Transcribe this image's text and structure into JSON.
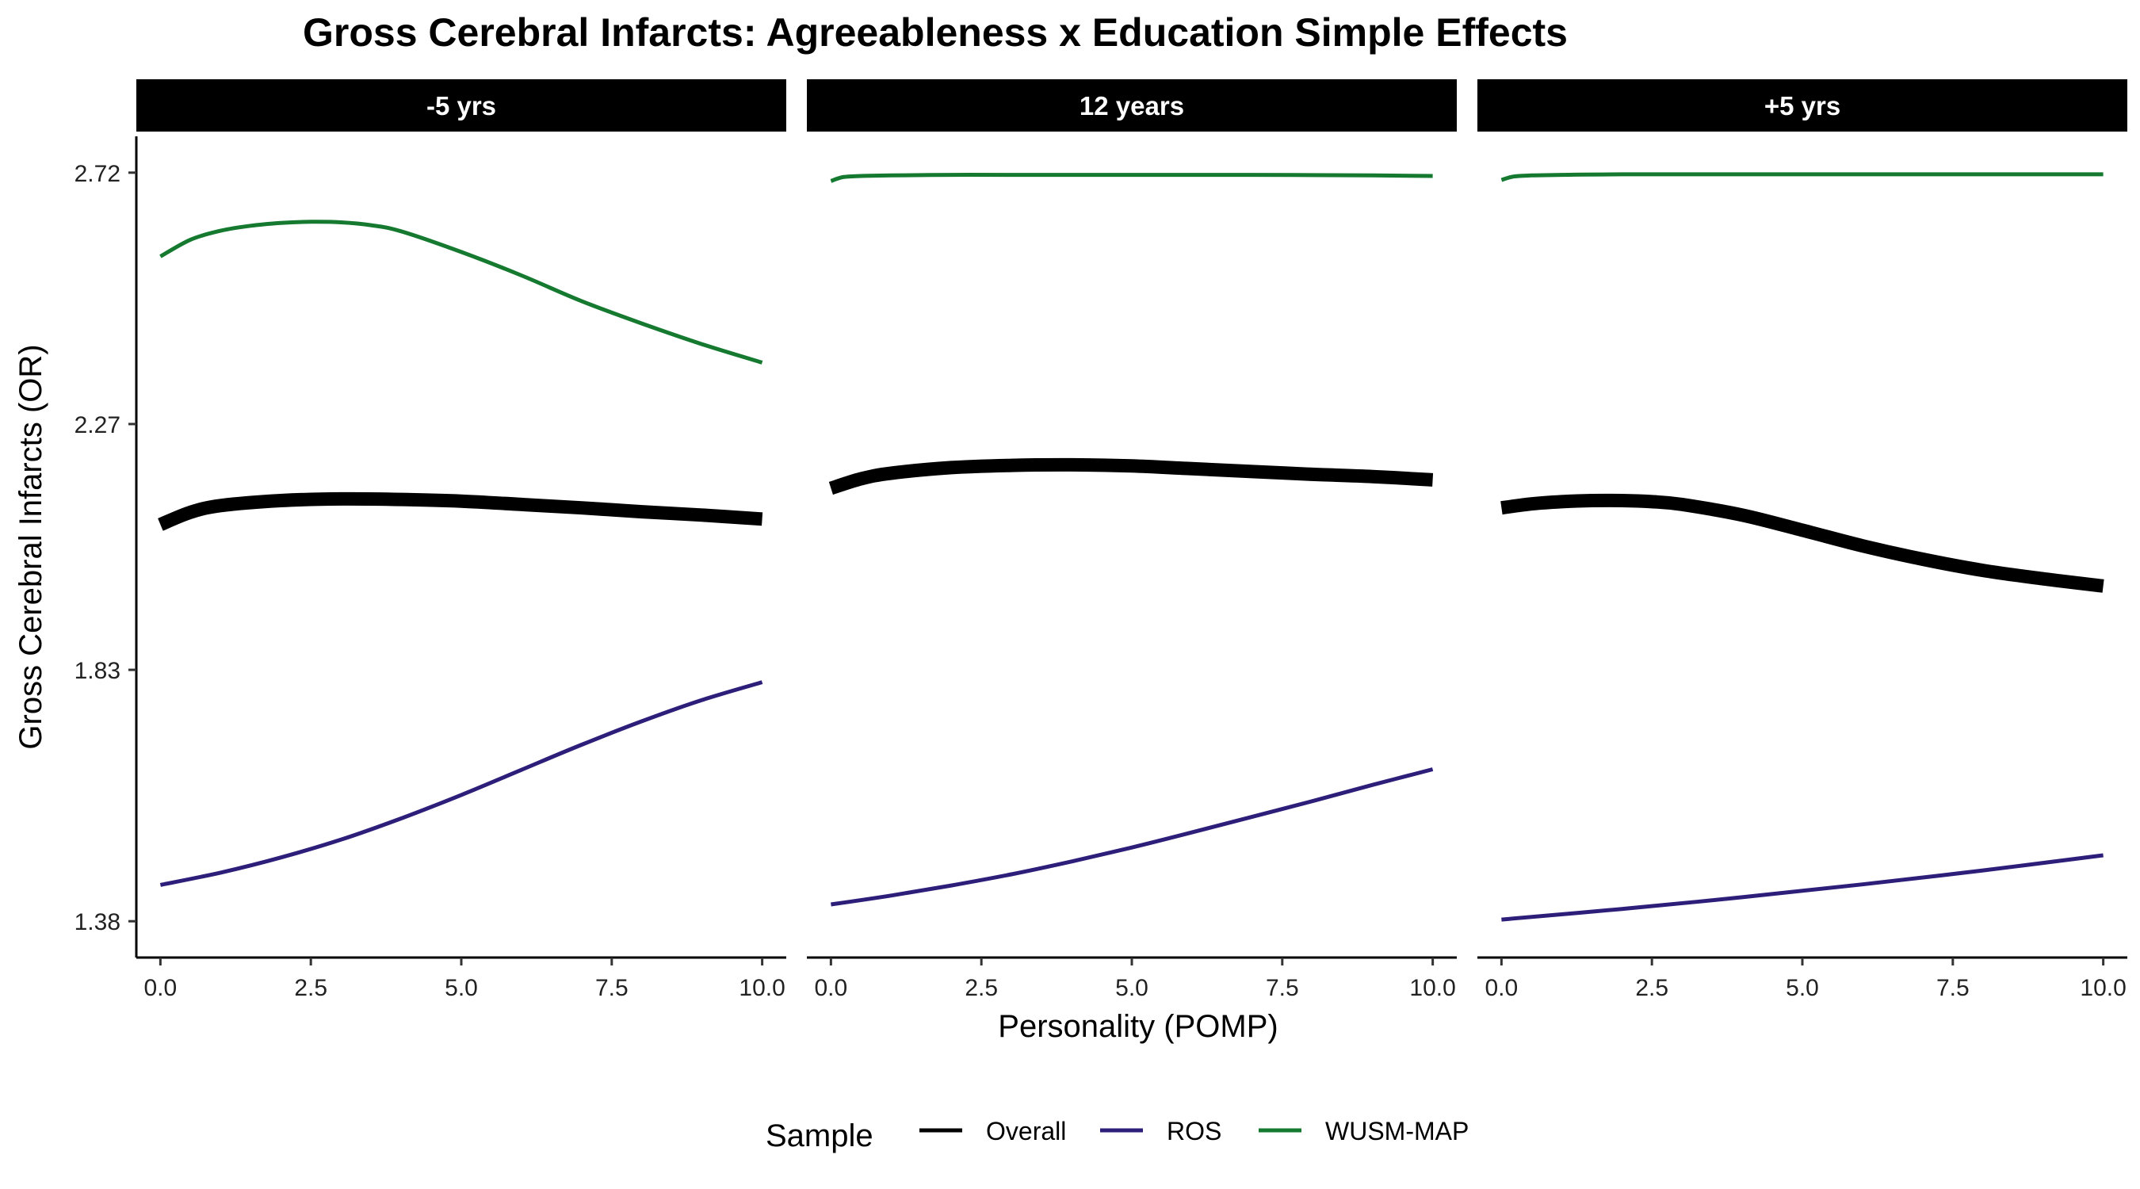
{
  "chart_data": {
    "type": "line",
    "title": "Gross Cerebral Infarcts: Agreeableness x Education Simple Effects",
    "xlabel": "Personality (POMP)",
    "ylabel": "Gross Cerebral Infarcts (OR)",
    "xlim": [
      -0.4,
      10.4
    ],
    "ylim": [
      1.315,
      2.785
    ],
    "x_ticks": [
      0.0,
      2.5,
      5.0,
      7.5,
      10.0
    ],
    "x_tick_labels": [
      "0.0",
      "2.5",
      "5.0",
      "7.5",
      "10.0"
    ],
    "y_ticks": [
      1.38,
      1.83,
      2.27,
      2.72
    ],
    "y_tick_labels": [
      "1.38",
      "1.83",
      "2.27",
      "2.72"
    ],
    "grid": false,
    "legend": {
      "title": "Sample",
      "position": "bottom",
      "items": [
        "Overall",
        "ROS",
        "WUSM-MAP"
      ]
    },
    "series_styles": [
      {
        "name": "Overall",
        "color": "#000000",
        "emphasis": "thick"
      },
      {
        "name": "ROS",
        "color": "#2d1e7a",
        "emphasis": "normal"
      },
      {
        "name": "WUSM-MAP",
        "color": "#157a30",
        "emphasis": "normal"
      }
    ],
    "facets": [
      {
        "label": "-5 yrs",
        "series": [
          {
            "name": "Overall",
            "x": [
              0,
              0.5,
              1,
              2,
              3,
              4,
              5,
              6,
              7,
              8,
              9,
              10
            ],
            "y": [
              2.09,
              2.112,
              2.124,
              2.133,
              2.136,
              2.135,
              2.132,
              2.126,
              2.12,
              2.113,
              2.107,
              2.1
            ]
          },
          {
            "name": "ROS",
            "x": [
              0,
              1,
              2,
              3,
              4,
              5,
              6,
              7,
              8,
              9,
              10
            ],
            "y": [
              1.445,
              1.467,
              1.494,
              1.526,
              1.564,
              1.606,
              1.651,
              1.696,
              1.738,
              1.776,
              1.808
            ]
          },
          {
            "name": "WUSM-MAP",
            "x": [
              0,
              0.5,
              1,
              1.5,
              2,
              2.5,
              3,
              3.5,
              4,
              5,
              6,
              7,
              8,
              9,
              10
            ],
            "y": [
              2.57,
              2.6,
              2.616,
              2.625,
              2.63,
              2.632,
              2.631,
              2.626,
              2.615,
              2.578,
              2.536,
              2.49,
              2.45,
              2.413,
              2.38
            ]
          }
        ]
      },
      {
        "label": "12 years",
        "series": [
          {
            "name": "Overall",
            "x": [
              0,
              0.5,
              1,
              2,
              3,
              4,
              5,
              6,
              7,
              8,
              9,
              10
            ],
            "y": [
              2.155,
              2.172,
              2.182,
              2.192,
              2.196,
              2.197,
              2.195,
              2.19,
              2.185,
              2.18,
              2.176,
              2.17
            ]
          },
          {
            "name": "ROS",
            "x": [
              0,
              1,
              2,
              3,
              4,
              5,
              6,
              7,
              8,
              9,
              10
            ],
            "y": [
              1.41,
              1.426,
              1.444,
              1.464,
              1.487,
              1.512,
              1.539,
              1.567,
              1.595,
              1.624,
              1.652
            ]
          },
          {
            "name": "WUSM-MAP",
            "x": [
              0,
              0.2,
              0.5,
              1,
              2,
              3,
              5,
              7,
              9,
              10
            ],
            "y": [
              2.705,
              2.712,
              2.714,
              2.715,
              2.716,
              2.716,
              2.716,
              2.716,
              2.715,
              2.714
            ]
          }
        ]
      },
      {
        "label": "+5 yrs",
        "series": [
          {
            "name": "Overall",
            "x": [
              0,
              0.5,
              1,
              1.5,
              2,
              2.5,
              3,
              4,
              5,
              6,
              7,
              8,
              9,
              10
            ],
            "y": [
              2.12,
              2.127,
              2.131,
              2.133,
              2.133,
              2.131,
              2.126,
              2.107,
              2.08,
              2.052,
              2.028,
              2.008,
              1.993,
              1.98
            ]
          },
          {
            "name": "ROS",
            "x": [
              0,
              2,
              4,
              6,
              8,
              10
            ],
            "y": [
              1.383,
              1.402,
              1.423,
              1.446,
              1.471,
              1.498
            ]
          },
          {
            "name": "WUSM-MAP",
            "x": [
              0,
              0.2,
              0.5,
              1,
              2,
              4,
              6,
              8,
              10
            ],
            "y": [
              2.707,
              2.713,
              2.715,
              2.716,
              2.717,
              2.717,
              2.717,
              2.717,
              2.717
            ]
          }
        ]
      }
    ]
  }
}
